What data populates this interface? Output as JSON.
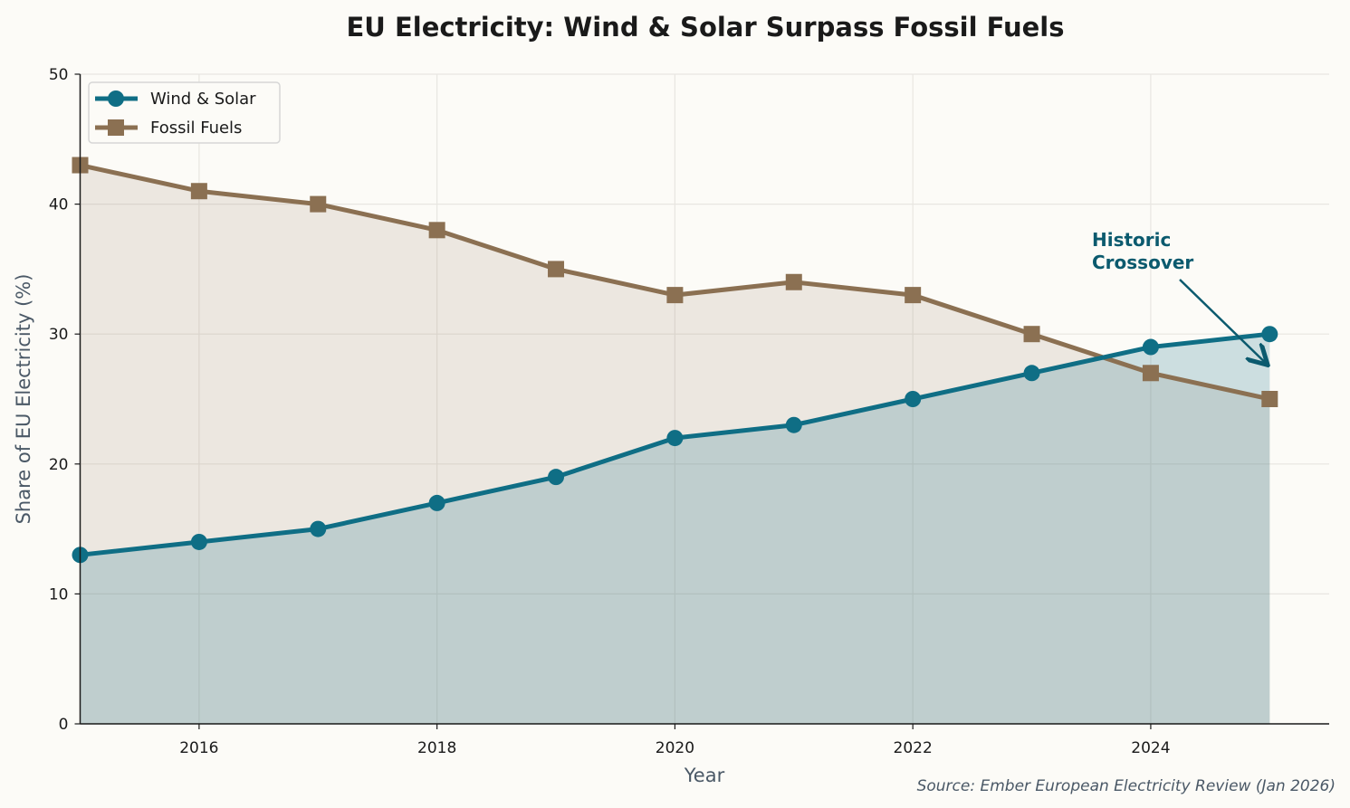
{
  "chart_data": {
    "type": "line",
    "title": "EU Electricity: Wind & Solar Surpass Fossil Fuels",
    "xlabel": "Year",
    "ylabel": "Share of EU Electricity (%)",
    "xlim": [
      2015,
      2025.5
    ],
    "ylim": [
      0,
      50
    ],
    "xticks": [
      2016,
      2018,
      2020,
      2022,
      2024
    ],
    "yticks": [
      0,
      10,
      20,
      30,
      40,
      50
    ],
    "grid": true,
    "legend_position": "top-left",
    "x": [
      2015,
      2016,
      2017,
      2018,
      2019,
      2020,
      2021,
      2022,
      2023,
      2024,
      2025
    ],
    "series": [
      {
        "name": "Wind & Solar",
        "marker": "circle",
        "color": "#0f6e85",
        "fill": true,
        "values": [
          13,
          14,
          15,
          17,
          19,
          22,
          23,
          25,
          27,
          29,
          30
        ]
      },
      {
        "name": "Fossil Fuels",
        "marker": "square",
        "color": "#8b7052",
        "fill": true,
        "values": [
          43,
          41,
          40,
          38,
          35,
          33,
          34,
          33,
          30,
          27,
          25
        ]
      }
    ],
    "annotations": [
      {
        "text_lines": [
          "Historic",
          "Crossover"
        ],
        "color": "#0b5a6e",
        "text_at": [
          2023.5,
          37
        ],
        "arrow_to": [
          2025,
          27.6
        ]
      }
    ],
    "source": "Source: Ember European Electricity Review (Jan 2026)"
  }
}
